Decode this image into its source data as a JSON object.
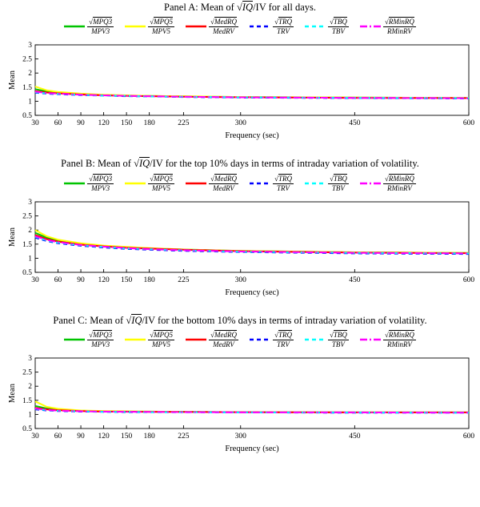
{
  "glyphs": {
    "sqrt": "√"
  },
  "chart_data": [
    {
      "type": "line",
      "title": {
        "prefix": "Panel A: Mean of ",
        "radicand": "IQ",
        "rest": "/IV for all days."
      },
      "xlabel": "Frequency (sec)",
      "ylabel": "Mean",
      "xlim": [
        30,
        600
      ],
      "ylim": [
        0.5,
        3
      ],
      "x_ticks": [
        30,
        60,
        90,
        120,
        150,
        180,
        225,
        300,
        450,
        600
      ],
      "y_ticks": [
        0.5,
        1,
        1.5,
        2,
        2.5,
        3
      ],
      "grid": false,
      "legend_position": "top",
      "x": [
        30,
        45,
        60,
        90,
        120,
        150,
        180,
        225,
        300,
        450,
        600
      ],
      "series": [
        {
          "num": "MPQ3",
          "den": "MPV3",
          "color": "#00c400",
          "dash": "solid",
          "values": [
            1.43,
            1.35,
            1.3,
            1.25,
            1.22,
            1.2,
            1.19,
            1.17,
            1.15,
            1.13,
            1.12
          ]
        },
        {
          "num": "MPQ5",
          "den": "MPV5",
          "color": "#ffff00",
          "dash": "solid",
          "values": [
            1.52,
            1.39,
            1.33,
            1.27,
            1.23,
            1.21,
            1.19,
            1.18,
            1.15,
            1.13,
            1.12
          ]
        },
        {
          "num": "MedRQ",
          "den": "MedRV",
          "color": "#ff0000",
          "dash": "solid",
          "values": [
            1.36,
            1.31,
            1.28,
            1.24,
            1.21,
            1.19,
            1.18,
            1.16,
            1.14,
            1.12,
            1.11
          ]
        },
        {
          "num": "TRQ",
          "den": "TRV",
          "color": "#0000ff",
          "dash": "dashed",
          "values": [
            1.3,
            1.27,
            1.25,
            1.22,
            1.2,
            1.18,
            1.17,
            1.15,
            1.13,
            1.11,
            1.1
          ]
        },
        {
          "num": "TBQ",
          "den": "TBV",
          "color": "#00ffff",
          "dash": "dashed",
          "values": [
            1.32,
            1.28,
            1.26,
            1.23,
            1.2,
            1.19,
            1.17,
            1.16,
            1.14,
            1.12,
            1.11
          ]
        },
        {
          "num": "RMinRQ",
          "den": "RMinRV",
          "color": "#ff00ff",
          "dash": "dashdot",
          "values": [
            1.34,
            1.29,
            1.27,
            1.23,
            1.21,
            1.19,
            1.18,
            1.16,
            1.14,
            1.12,
            1.11
          ]
        }
      ]
    },
    {
      "type": "line",
      "title": {
        "prefix": "Panel B: Mean of ",
        "radicand": "IQ",
        "rest": "/IV for the top 10% days in terms of intraday variation of volatility."
      },
      "xlabel": "Frequency (sec)",
      "ylabel": "Mean",
      "xlim": [
        30,
        600
      ],
      "ylim": [
        0.5,
        3
      ],
      "x_ticks": [
        30,
        60,
        90,
        120,
        150,
        180,
        225,
        300,
        450,
        600
      ],
      "y_ticks": [
        0.5,
        1,
        1.5,
        2,
        2.5,
        3
      ],
      "grid": false,
      "legend_position": "top",
      "x": [
        30,
        45,
        60,
        90,
        120,
        150,
        180,
        225,
        300,
        450,
        600
      ],
      "series": [
        {
          "num": "MPQ3",
          "den": "MPV3",
          "color": "#00c400",
          "dash": "solid",
          "values": [
            1.9,
            1.73,
            1.63,
            1.51,
            1.44,
            1.39,
            1.35,
            1.31,
            1.26,
            1.21,
            1.19
          ]
        },
        {
          "num": "MPQ5",
          "den": "MPV5",
          "color": "#ffff00",
          "dash": "solid",
          "values": [
            2.0,
            1.78,
            1.66,
            1.53,
            1.45,
            1.4,
            1.36,
            1.31,
            1.26,
            1.21,
            1.19
          ]
        },
        {
          "num": "MedRQ",
          "den": "MedRV",
          "color": "#ff0000",
          "dash": "solid",
          "values": [
            1.82,
            1.68,
            1.59,
            1.48,
            1.42,
            1.37,
            1.34,
            1.3,
            1.25,
            1.2,
            1.18
          ]
        },
        {
          "num": "TRQ",
          "den": "TRV",
          "color": "#0000ff",
          "dash": "dashed",
          "values": [
            1.73,
            1.61,
            1.53,
            1.44,
            1.38,
            1.33,
            1.3,
            1.26,
            1.22,
            1.17,
            1.15
          ]
        },
        {
          "num": "TBQ",
          "den": "TBV",
          "color": "#00ffff",
          "dash": "dashed",
          "values": [
            1.76,
            1.63,
            1.55,
            1.46,
            1.4,
            1.35,
            1.32,
            1.28,
            1.23,
            1.19,
            1.17
          ]
        },
        {
          "num": "RMinRQ",
          "den": "RMinRV",
          "color": "#ff00ff",
          "dash": "dashdot",
          "values": [
            1.78,
            1.65,
            1.57,
            1.47,
            1.41,
            1.36,
            1.32,
            1.28,
            1.24,
            1.19,
            1.17
          ]
        }
      ]
    },
    {
      "type": "line",
      "title": {
        "prefix": "Panel C: Mean of ",
        "radicand": "IQ",
        "rest": "/IV for the bottom 10% days in terms of intraday variation of volatility."
      },
      "xlabel": "Frequency (sec)",
      "ylabel": "Mean",
      "xlim": [
        30,
        600
      ],
      "ylim": [
        0.5,
        3
      ],
      "x_ticks": [
        30,
        60,
        90,
        120,
        150,
        180,
        225,
        300,
        450,
        600
      ],
      "y_ticks": [
        0.5,
        1,
        1.5,
        2,
        2.5,
        3
      ],
      "grid": false,
      "legend_position": "top",
      "x": [
        30,
        45,
        60,
        90,
        120,
        150,
        180,
        225,
        300,
        450,
        600
      ],
      "series": [
        {
          "num": "MPQ3",
          "den": "MPV3",
          "color": "#00c400",
          "dash": "solid",
          "values": [
            1.3,
            1.21,
            1.17,
            1.13,
            1.11,
            1.1,
            1.1,
            1.09,
            1.08,
            1.07,
            1.07
          ]
        },
        {
          "num": "MPQ5",
          "den": "MPV5",
          "color": "#ffff00",
          "dash": "solid",
          "values": [
            1.46,
            1.27,
            1.2,
            1.14,
            1.12,
            1.11,
            1.1,
            1.09,
            1.08,
            1.07,
            1.07
          ]
        },
        {
          "num": "MedRQ",
          "den": "MedRV",
          "color": "#ff0000",
          "dash": "solid",
          "values": [
            1.23,
            1.18,
            1.15,
            1.12,
            1.1,
            1.1,
            1.09,
            1.09,
            1.08,
            1.07,
            1.07
          ]
        },
        {
          "num": "TRQ",
          "den": "TRV",
          "color": "#0000ff",
          "dash": "dashed",
          "values": [
            1.18,
            1.14,
            1.12,
            1.1,
            1.09,
            1.08,
            1.08,
            1.08,
            1.07,
            1.06,
            1.06
          ]
        },
        {
          "num": "TBQ",
          "den": "TBV",
          "color": "#00ffff",
          "dash": "dashed",
          "values": [
            1.2,
            1.15,
            1.13,
            1.11,
            1.09,
            1.09,
            1.08,
            1.08,
            1.07,
            1.07,
            1.06
          ]
        },
        {
          "num": "RMinRQ",
          "den": "RMinRV",
          "color": "#ff00ff",
          "dash": "dashdot",
          "values": [
            1.21,
            1.16,
            1.13,
            1.11,
            1.1,
            1.09,
            1.09,
            1.08,
            1.07,
            1.07,
            1.06
          ]
        }
      ]
    }
  ]
}
